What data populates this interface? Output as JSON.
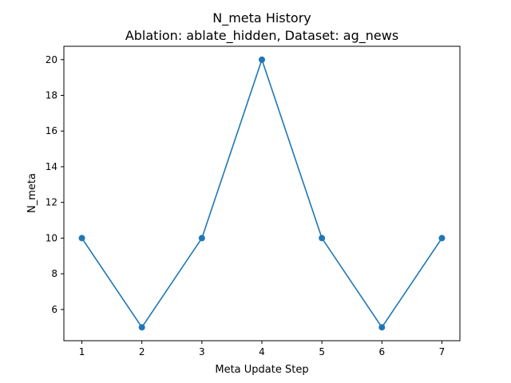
{
  "chart_data": {
    "type": "line",
    "title": "N_meta History",
    "subtitle": "Ablation: ablate_hidden, Dataset: ag_news",
    "xlabel": "Meta Update Step",
    "ylabel": "N_meta",
    "x": [
      1,
      2,
      3,
      4,
      5,
      6,
      7
    ],
    "series": [
      {
        "values": [
          10,
          5,
          10,
          20,
          10,
          5,
          10
        ],
        "color": "#1f77b4"
      }
    ],
    "xlim": [
      0.7,
      7.3
    ],
    "ylim": [
      4.25,
      20.75
    ],
    "xticks": [
      1,
      2,
      3,
      4,
      5,
      6,
      7
    ],
    "yticks": [
      6,
      8,
      10,
      12,
      14,
      16,
      18,
      20
    ],
    "marker": "circle",
    "grid": false,
    "legend": false
  }
}
